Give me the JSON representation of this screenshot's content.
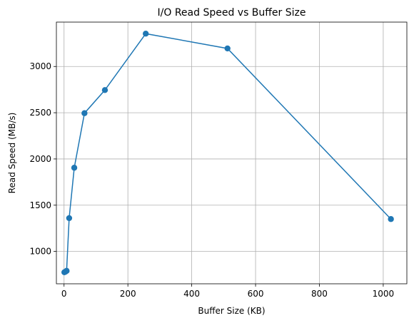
{
  "chart_data": {
    "type": "line",
    "title": "I/O Read Speed vs Buffer Size",
    "xlabel": "Buffer Size (KB)",
    "ylabel": "Read Speed (MB/s)",
    "xlim": [
      -24,
      1074
    ],
    "ylim": [
      650,
      3480
    ],
    "xticks": [
      0,
      200,
      400,
      600,
      800,
      1000
    ],
    "yticks": [
      1000,
      1500,
      2000,
      2500,
      3000
    ],
    "grid": true,
    "marker": "circle",
    "series": [
      {
        "color": "#1f77b4",
        "x": [
          1,
          4,
          8,
          16,
          32,
          64,
          128,
          256,
          512,
          1024
        ],
        "y": [
          775,
          780,
          790,
          1360,
          1905,
          2495,
          2745,
          3355,
          3195,
          1350
        ]
      }
    ]
  }
}
